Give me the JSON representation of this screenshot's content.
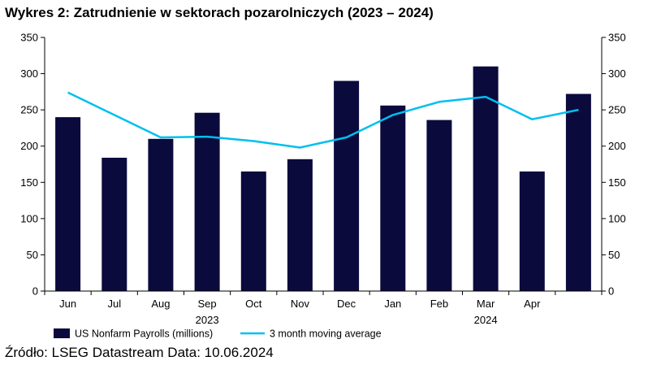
{
  "title": "Wykres 2: Zatrudnienie w sektorach pozarolniczych (2023 – 2024)",
  "source": "Źródło: LSEG Datastream Data: 10.06.2024",
  "colors": {
    "bar": "#0b0a3d",
    "line": "#00bfef",
    "axis": "#000000"
  },
  "chart_data": {
    "type": "bar",
    "categories": [
      "Jun",
      "Jul",
      "Aug",
      "Sep",
      "Oct",
      "Nov",
      "Dec",
      "Jan",
      "Feb",
      "Mar",
      "Apr",
      "May"
    ],
    "category_labels": [
      "Jun",
      "Jul",
      "Aug",
      "Sep",
      "Oct",
      "Nov",
      "Dec",
      "Jan",
      "Feb",
      "Mar",
      "Apr",
      ""
    ],
    "year_labels": [
      {
        "text": "2023",
        "category": "Sep"
      },
      {
        "text": "2024",
        "category": "Mar"
      }
    ],
    "ylim": [
      0,
      350
    ],
    "yticks": [
      0,
      50,
      100,
      150,
      200,
      250,
      300,
      350
    ],
    "secondary_axis": true,
    "grid": false,
    "legend_position": "bottom-left",
    "series": [
      {
        "name": "US Nonfarm Payrolls (millions)",
        "type": "bar",
        "values": [
          240,
          184,
          210,
          246,
          165,
          182,
          290,
          256,
          236,
          310,
          165,
          272
        ]
      },
      {
        "name": "3 month moving average",
        "type": "line",
        "values": [
          274,
          243,
          212,
          213,
          207,
          198,
          212,
          243,
          261,
          268,
          237,
          250
        ]
      }
    ]
  }
}
